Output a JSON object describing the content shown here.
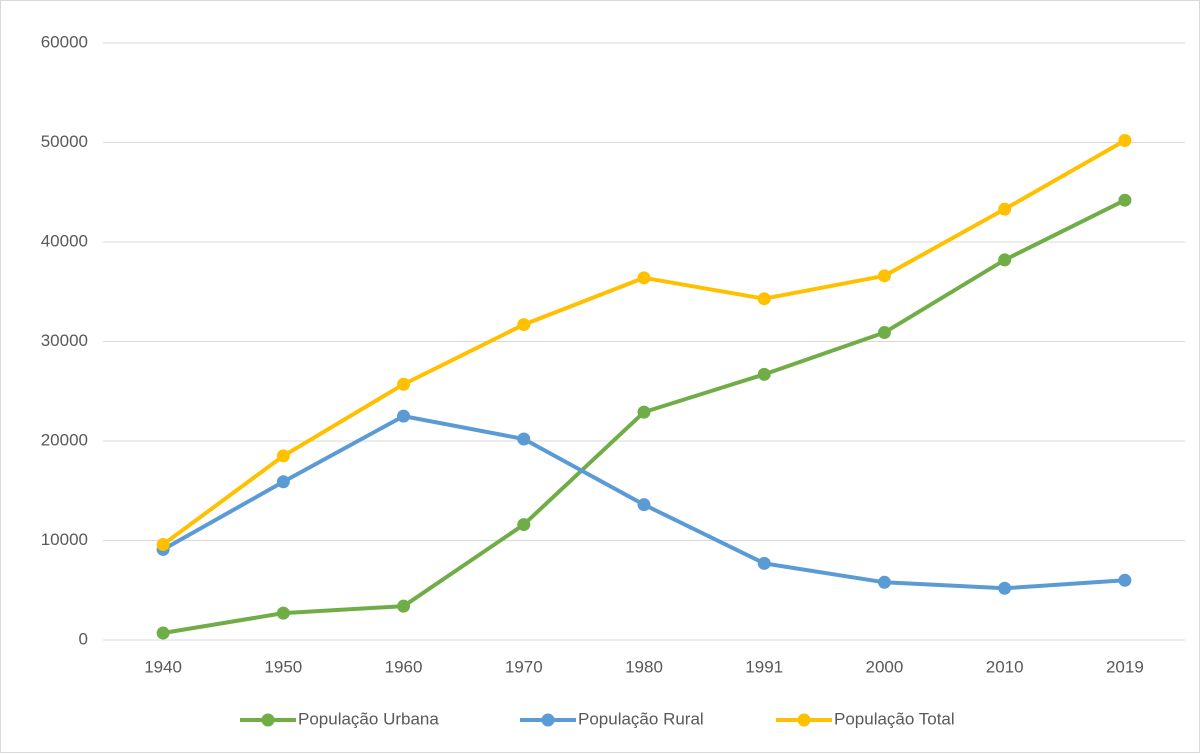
{
  "chart_data": {
    "type": "line",
    "categories": [
      "1940",
      "1950",
      "1960",
      "1970",
      "1980",
      "1991",
      "2000",
      "2010",
      "2019"
    ],
    "series": [
      {
        "name": "População Urbana",
        "color": "#70ad47",
        "values": [
          700,
          2700,
          3400,
          11600,
          22900,
          26700,
          30900,
          38200,
          44200
        ]
      },
      {
        "name": "População Rural",
        "color": "#5b9bd5",
        "values": [
          9100,
          15900,
          22500,
          20200,
          13600,
          7700,
          5800,
          5200,
          6000
        ]
      },
      {
        "name": "População Total",
        "color": "#ffc000",
        "values": [
          9600,
          18500,
          25700,
          31700,
          36400,
          34300,
          36600,
          43300,
          50200
        ]
      }
    ],
    "ylim": [
      0,
      60000
    ],
    "yticks": [
      0,
      10000,
      20000,
      30000,
      40000,
      50000,
      60000
    ],
    "grid": true,
    "legend": "bottom"
  }
}
